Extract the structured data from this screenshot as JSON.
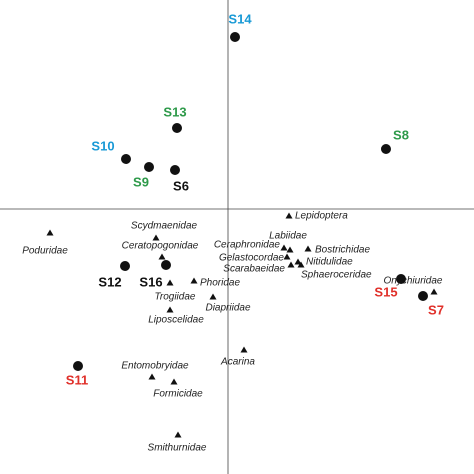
{
  "chart_data": {
    "type": "scatter",
    "xlim": [
      -2.28,
      2.46
    ],
    "ylim": [
      -2.65,
      2.09
    ],
    "samples": [
      {
        "label": "S14",
        "x": 0.07,
        "y": 1.72,
        "color": "#1a9ad6"
      },
      {
        "label": "S13",
        "x": -0.51,
        "y": 0.81,
        "color": "#2e9a4a"
      },
      {
        "label": "S10",
        "x": -1.02,
        "y": 0.5,
        "color": "#1a9ad6"
      },
      {
        "label": "S9",
        "x": -0.79,
        "y": 0.42,
        "color": "#2e9a4a"
      },
      {
        "label": "S6",
        "x": -0.53,
        "y": 0.39,
        "color": "#111111"
      },
      {
        "label": "S8",
        "x": 1.58,
        "y": 0.6,
        "color": "#2e9a4a"
      },
      {
        "label": "S12",
        "x": -1.03,
        "y": -0.57,
        "color": "#111111"
      },
      {
        "label": "S16",
        "x": -0.62,
        "y": -0.56,
        "color": "#111111"
      },
      {
        "label": "S15",
        "x": 1.73,
        "y": -0.7,
        "color": "#e0302a"
      },
      {
        "label": "S7",
        "x": 1.95,
        "y": -0.87,
        "color": "#e0302a"
      },
      {
        "label": "S11",
        "x": -1.5,
        "y": -1.57,
        "color": "#e0302a"
      }
    ],
    "taxa": [
      {
        "label": "Lepidoptera",
        "x": 0.61,
        "y": -0.07
      },
      {
        "label": "Poduridae",
        "x": -1.78,
        "y": -0.24
      },
      {
        "label": "Scydmaenidae",
        "x": -0.72,
        "y": -0.29
      },
      {
        "label": "Ceratopogonidae",
        "x": -0.66,
        "y": -0.48
      },
      {
        "label": "Phoridae",
        "x": -0.34,
        "y": -0.72
      },
      {
        "label": "Trogiidae",
        "x": -0.58,
        "y": -0.74
      },
      {
        "label": "Liposcelidae",
        "x": -0.58,
        "y": -1.01
      },
      {
        "label": "Ceraphronidae",
        "x": 0.56,
        "y": -0.39
      },
      {
        "label": "Labiidae",
        "x": 0.62,
        "y": -0.41
      },
      {
        "label": "Gelastocordae",
        "x": 0.59,
        "y": -0.48
      },
      {
        "label": "Bostrichidae",
        "x": 0.8,
        "y": -0.4
      },
      {
        "label": "Nitidulidae",
        "x": 0.7,
        "y": -0.53
      },
      {
        "label": "Scarabaeidae",
        "x": 0.63,
        "y": -0.56
      },
      {
        "label": "Sphaeroceridae",
        "x": 0.73,
        "y": -0.56
      },
      {
        "label": "Onychiuridae",
        "x": 2.06,
        "y": -0.83
      },
      {
        "label": "Diapriidae",
        "x": -0.15,
        "y": -0.88
      },
      {
        "label": "Acarina",
        "x": 0.16,
        "y": -1.41
      },
      {
        "label": "Entomobryidae",
        "x": -0.76,
        "y": -1.68
      },
      {
        "label": "Formicidae",
        "x": -0.54,
        "y": -1.73
      },
      {
        "label": "Smithurnidae",
        "x": -0.5,
        "y": -2.26
      }
    ]
  }
}
